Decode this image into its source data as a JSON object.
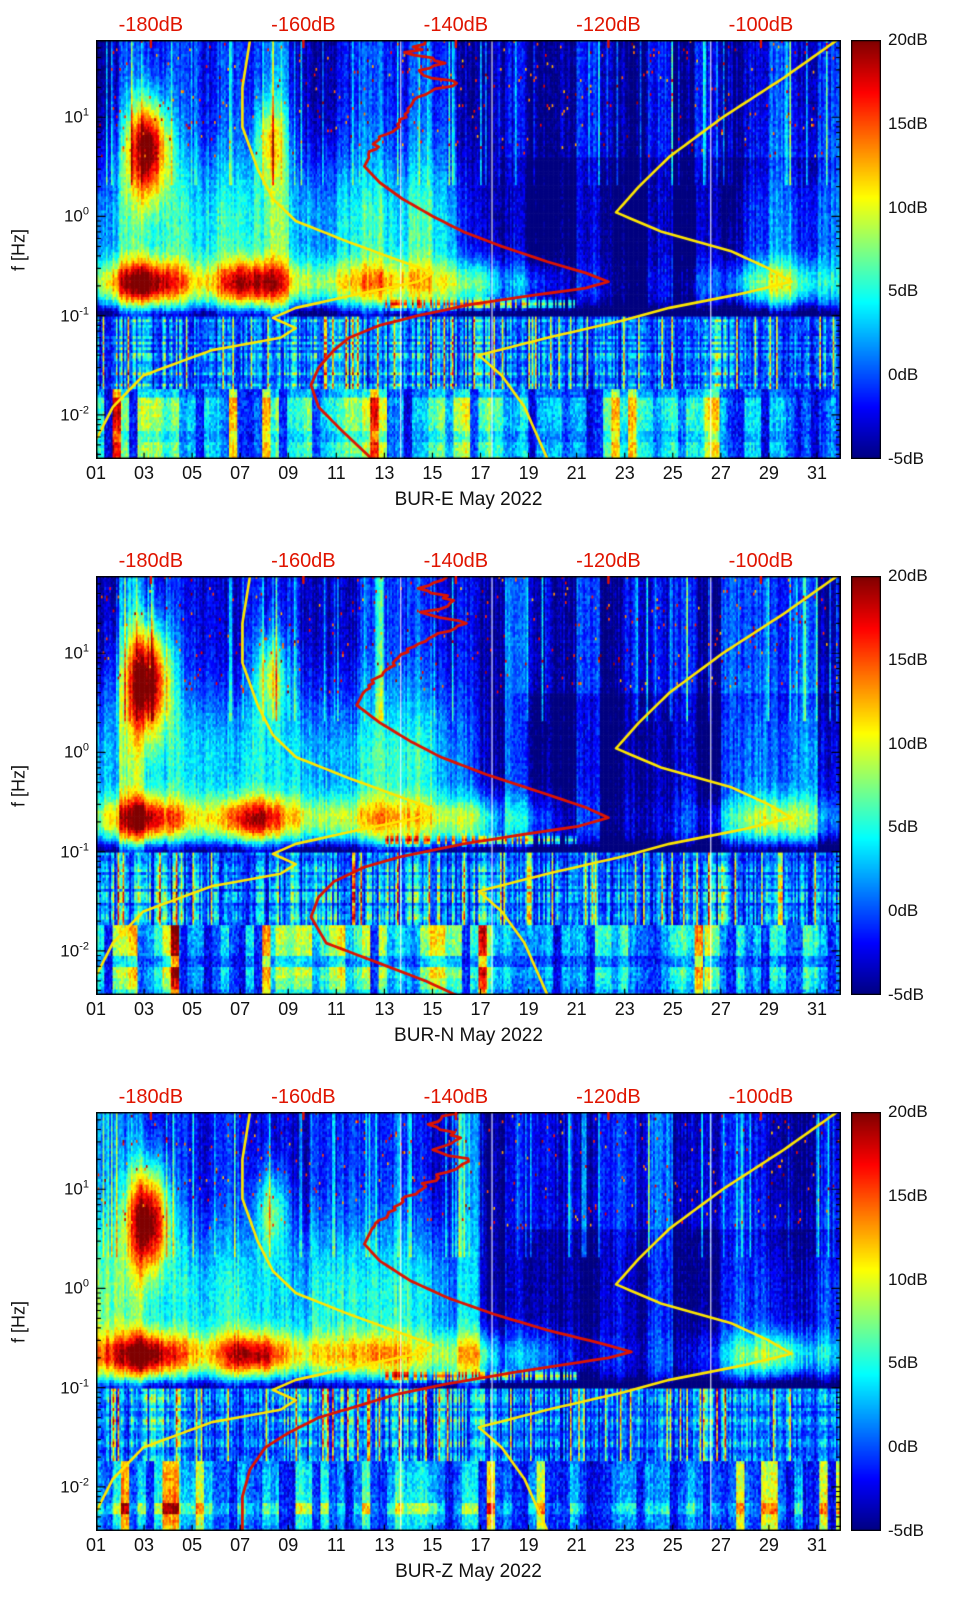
{
  "figure": {
    "background": "#ffffff",
    "panel_count": 3,
    "description": "Three stacked power spectral density spectrograms for seismic station BUR (components E, N, Z), May 2022, with Peterson noise model curves (yellow) and station median PSD curve (red) referenced to the red top dB axis."
  },
  "shared": {
    "ylabel": "f [Hz]",
    "y_axis": {
      "scale": "log",
      "base_label": "10",
      "ticks": [
        {
          "exp": 1,
          "exp_label": "1"
        },
        {
          "exp": 0,
          "exp_label": "0"
        },
        {
          "exp": -1,
          "exp_label": "-1"
        },
        {
          "exp": -2,
          "exp_label": "-2"
        }
      ],
      "f_range": [
        0.0036,
        60
      ]
    },
    "x_axis": {
      "day_range": [
        1,
        32
      ],
      "tick_days": [
        1,
        3,
        5,
        7,
        9,
        11,
        13,
        15,
        17,
        19,
        21,
        23,
        25,
        27,
        29,
        31
      ],
      "tick_labels": [
        "01",
        "03",
        "05",
        "07",
        "09",
        "11",
        "13",
        "15",
        "17",
        "19",
        "21",
        "23",
        "25",
        "27",
        "29",
        "31"
      ]
    },
    "top_axis": {
      "color": "#e01400",
      "db_range": [
        -187.2,
        -89.5
      ],
      "ticks": [
        {
          "db": -180,
          "label": "-180dB"
        },
        {
          "db": -160,
          "label": "-160dB"
        },
        {
          "db": -140,
          "label": "-140dB"
        },
        {
          "db": -120,
          "label": "-120dB"
        },
        {
          "db": -100,
          "label": "-100dB"
        }
      ]
    },
    "colorbar": {
      "colormap": "jet",
      "db_min": -5,
      "db_max": 20,
      "tick_labels": [
        "20dB",
        "15dB",
        "10dB",
        "5dB",
        "0dB",
        "-5dB"
      ]
    },
    "curve_colors": {
      "noise_model": "#ffe600",
      "station_psd": "#dd1400"
    },
    "model_curves": {
      "nlnm_f_db": [
        [
          60,
          -167
        ],
        [
          20,
          -168
        ],
        [
          8,
          -168
        ],
        [
          3,
          -166
        ],
        [
          1.5,
          -164
        ],
        [
          0.9,
          -161
        ],
        [
          0.55,
          -154
        ],
        [
          0.35,
          -147
        ],
        [
          0.27,
          -143
        ],
        [
          0.22,
          -145
        ],
        [
          0.17,
          -152
        ],
        [
          0.12,
          -161
        ],
        [
          0.095,
          -164
        ],
        [
          0.075,
          -161
        ],
        [
          0.06,
          -163
        ],
        [
          0.045,
          -172
        ],
        [
          0.025,
          -181
        ],
        [
          0.012,
          -185
        ],
        [
          0.006,
          -187
        ],
        [
          0.0036,
          -189
        ]
      ],
      "nhnm_f_db": [
        [
          60,
          -90
        ],
        [
          25,
          -97
        ],
        [
          10,
          -105
        ],
        [
          4,
          -112
        ],
        [
          2,
          -116
        ],
        [
          1.1,
          -119
        ],
        [
          0.7,
          -113
        ],
        [
          0.45,
          -104
        ],
        [
          0.3,
          -99
        ],
        [
          0.22,
          -96
        ],
        [
          0.17,
          -102
        ],
        [
          0.12,
          -112
        ],
        [
          0.09,
          -118
        ],
        [
          0.06,
          -128
        ],
        [
          0.04,
          -137
        ],
        [
          0.025,
          -134
        ],
        [
          0.012,
          -131
        ],
        [
          0.0036,
          -128
        ]
      ]
    }
  },
  "chart_data": [
    {
      "type": "heatmap",
      "station": "BUR-E",
      "xlabel": "BUR-E May 2022",
      "x_unit": "day of month (May 2022)",
      "y_unit": "Hz",
      "value_unit": "dB",
      "value_range": [
        -5,
        20
      ],
      "overlays": [
        {
          "name": "low-noise-model",
          "color": "#ffe600",
          "source": "shared.model_curves.nlnm_f_db"
        },
        {
          "name": "high-noise-model",
          "color": "#ffe600",
          "source": "shared.model_curves.nhnm_f_db"
        },
        {
          "name": "median-psd",
          "color": "#dd1400",
          "jitter_above_hz": 4,
          "points_f_db": [
            [
              58,
              -143
            ],
            [
              45,
              -146
            ],
            [
              35,
              -141
            ],
            [
              28,
              -145
            ],
            [
              22,
              -140
            ],
            [
              17,
              -144
            ],
            [
              13,
              -146
            ],
            [
              10,
              -147
            ],
            [
              8,
              -148
            ],
            [
              6,
              -150
            ],
            [
              4.5,
              -151
            ],
            [
              3.2,
              -152
            ],
            [
              2.2,
              -150
            ],
            [
              1.5,
              -147
            ],
            [
              1.0,
              -143
            ],
            [
              0.7,
              -139
            ],
            [
              0.5,
              -134
            ],
            [
              0.35,
              -128
            ],
            [
              0.27,
              -123
            ],
            [
              0.22,
              -120
            ],
            [
              0.19,
              -123
            ],
            [
              0.16,
              -130
            ],
            [
              0.13,
              -138
            ],
            [
              0.1,
              -145
            ],
            [
              0.08,
              -150
            ],
            [
              0.06,
              -154
            ],
            [
              0.045,
              -156
            ],
            [
              0.03,
              -158
            ],
            [
              0.02,
              -159
            ],
            [
              0.012,
              -158
            ],
            [
              0.007,
              -155
            ],
            [
              0.0036,
              -151
            ]
          ]
        }
      ],
      "heat_model": {
        "seed": 101,
        "base_db": -1.5,
        "microseism_f_hz": 0.21,
        "ms_day_db": [
          9,
          15,
          21,
          16,
          10,
          11,
          18,
          17,
          11,
          9,
          10,
          11,
          12,
          10,
          9,
          10,
          11,
          5,
          7,
          4,
          2,
          2,
          1,
          1,
          2,
          3,
          5,
          8,
          11,
          10,
          7,
          5
        ],
        "blobs": [
          {
            "day": 3.15,
            "f_hz": 5.0,
            "sigma_day": 0.6,
            "sigma_logf": 0.34,
            "amp_db": 21
          },
          {
            "day": 8.3,
            "f_hz": 6.0,
            "sigma_day": 0.45,
            "sigma_logf": 0.3,
            "amp_db": 9
          }
        ],
        "gap_days": [
          13.65,
          17.45,
          26.55
        ]
      }
    },
    {
      "type": "heatmap",
      "station": "BUR-N",
      "xlabel": "BUR-N May 2022",
      "x_unit": "day of month (May 2022)",
      "y_unit": "Hz",
      "value_unit": "dB",
      "value_range": [
        -5,
        20
      ],
      "overlays": [
        {
          "name": "low-noise-model",
          "color": "#ffe600",
          "source": "shared.model_curves.nlnm_f_db"
        },
        {
          "name": "high-noise-model",
          "color": "#ffe600",
          "source": "shared.model_curves.nhnm_f_db"
        },
        {
          "name": "median-psd",
          "color": "#dd1400",
          "jitter_above_hz": 4,
          "points_f_db": [
            [
              58,
              -141
            ],
            [
              45,
              -144
            ],
            [
              34,
              -140
            ],
            [
              26,
              -144
            ],
            [
              20,
              -139
            ],
            [
              15,
              -143
            ],
            [
              11,
              -146
            ],
            [
              8,
              -148
            ],
            [
              6,
              -150
            ],
            [
              4.2,
              -152
            ],
            [
              3,
              -153
            ],
            [
              2,
              -150
            ],
            [
              1.3,
              -146
            ],
            [
              0.9,
              -142
            ],
            [
              0.6,
              -136
            ],
            [
              0.4,
              -129
            ],
            [
              0.28,
              -123
            ],
            [
              0.22,
              -120
            ],
            [
              0.18,
              -124
            ],
            [
              0.15,
              -131
            ],
            [
              0.12,
              -139
            ],
            [
              0.09,
              -147
            ],
            [
              0.07,
              -152
            ],
            [
              0.05,
              -156
            ],
            [
              0.035,
              -158
            ],
            [
              0.022,
              -159
            ],
            [
              0.012,
              -157
            ],
            [
              0.005,
              -144
            ],
            [
              0.0036,
              -140
            ]
          ]
        }
      ],
      "heat_model": {
        "seed": 202,
        "base_db": -1.5,
        "microseism_f_hz": 0.21,
        "ms_day_db": [
          8,
          14,
          20,
          15,
          10,
          11,
          17,
          18,
          12,
          9,
          10,
          10,
          11,
          10,
          9,
          10,
          10,
          5,
          6,
          4,
          2,
          2,
          1,
          1,
          2,
          3,
          5,
          8,
          11,
          10,
          7,
          5
        ],
        "blobs": [
          {
            "day": 3.15,
            "f_hz": 5.5,
            "sigma_day": 0.65,
            "sigma_logf": 0.38,
            "amp_db": 22
          },
          {
            "day": 8.3,
            "f_hz": 6.0,
            "sigma_day": 0.45,
            "sigma_logf": 0.3,
            "amp_db": 10
          }
        ],
        "gap_days": [
          13.65,
          17.45,
          26.55
        ]
      }
    },
    {
      "type": "heatmap",
      "station": "BUR-Z",
      "xlabel": "BUR-Z May 2022",
      "x_unit": "day of month (May 2022)",
      "y_unit": "Hz",
      "value_unit": "dB",
      "value_range": [
        -5,
        20
      ],
      "overlays": [
        {
          "name": "low-noise-model",
          "color": "#ffe600",
          "source": "shared.model_curves.nlnm_f_db"
        },
        {
          "name": "high-noise-model",
          "color": "#ffe600",
          "source": "shared.model_curves.nhnm_f_db"
        },
        {
          "name": "median-psd",
          "color": "#dd1400",
          "jitter_above_hz": 4,
          "points_f_db": [
            [
              58,
              -140
            ],
            [
              45,
              -143
            ],
            [
              33,
              -139
            ],
            [
              25,
              -143
            ],
            [
              19,
              -138
            ],
            [
              14,
              -142
            ],
            [
              10,
              -145
            ],
            [
              7.5,
              -147
            ],
            [
              5.5,
              -149
            ],
            [
              4,
              -151
            ],
            [
              2.8,
              -152
            ],
            [
              1.9,
              -150
            ],
            [
              1.2,
              -146
            ],
            [
              0.8,
              -141
            ],
            [
              0.55,
              -135
            ],
            [
              0.38,
              -128
            ],
            [
              0.28,
              -121
            ],
            [
              0.23,
              -117
            ],
            [
              0.2,
              -120
            ],
            [
              0.17,
              -126
            ],
            [
              0.14,
              -133
            ],
            [
              0.11,
              -141
            ],
            [
              0.085,
              -148
            ],
            [
              0.065,
              -153
            ],
            [
              0.05,
              -158
            ],
            [
              0.035,
              -162
            ],
            [
              0.025,
              -165
            ],
            [
              0.015,
              -167
            ],
            [
              0.008,
              -168
            ],
            [
              0.0036,
              -168
            ]
          ]
        }
      ],
      "heat_model": {
        "seed": 303,
        "base_db": -1.5,
        "microseism_f_hz": 0.21,
        "ms_day_db": [
          9,
          15,
          22,
          17,
          11,
          12,
          18,
          18,
          12,
          10,
          10,
          11,
          12,
          10,
          9,
          10,
          11,
          5,
          7,
          4,
          2,
          2,
          1,
          1,
          2,
          3,
          5,
          9,
          12,
          11,
          7,
          5
        ],
        "blobs": [
          {
            "day": 3.15,
            "f_hz": 5.0,
            "sigma_day": 0.6,
            "sigma_logf": 0.36,
            "amp_db": 22
          },
          {
            "day": 8.3,
            "f_hz": 6.0,
            "sigma_day": 0.45,
            "sigma_logf": 0.3,
            "amp_db": 9
          }
        ],
        "gap_days": [
          13.65,
          17.45,
          26.55
        ]
      }
    }
  ]
}
